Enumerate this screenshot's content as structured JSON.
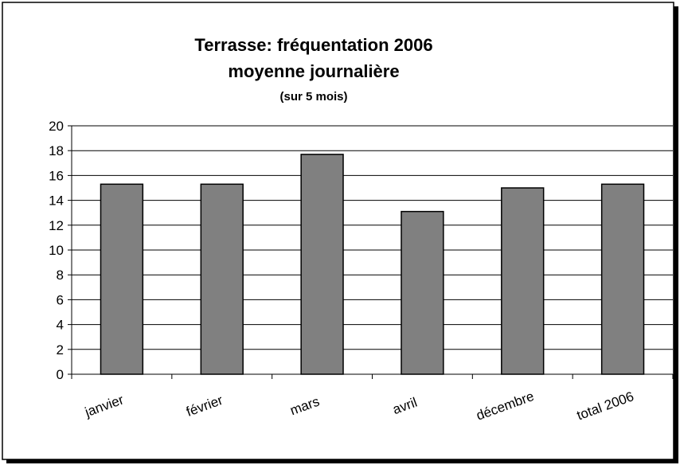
{
  "chart_data": {
    "type": "bar",
    "title": "Terrasse: fréquentation 2006",
    "subtitle": "moyenne journalière",
    "note": "(sur 5 mois)",
    "categories": [
      "janvier",
      "février",
      "mars",
      "avril",
      "décembre",
      "total 2006"
    ],
    "values": [
      15.3,
      15.3,
      17.7,
      13.1,
      15.0,
      15.3
    ],
    "color": "#808080",
    "ylim": [
      0,
      20
    ],
    "yticks": [
      0,
      2,
      4,
      6,
      8,
      10,
      12,
      14,
      16,
      18,
      20
    ],
    "grid": true
  }
}
